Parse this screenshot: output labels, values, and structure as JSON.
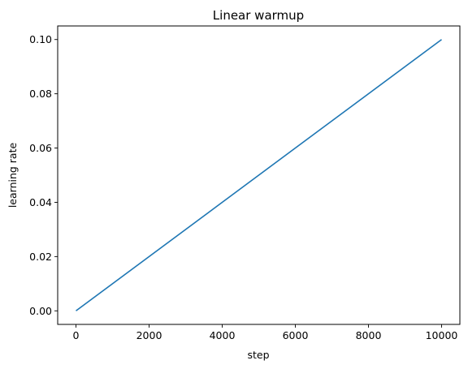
{
  "chart_data": {
    "type": "line",
    "title": "Linear warmup",
    "xlabel": "step",
    "ylabel": "learning rate",
    "xlim": [
      -500,
      10500
    ],
    "ylim": [
      -0.005,
      0.105
    ],
    "xticks": [
      0,
      2000,
      4000,
      6000,
      8000,
      10000
    ],
    "xtick_labels": [
      "0",
      "2000",
      "4000",
      "6000",
      "8000",
      "10000"
    ],
    "yticks": [
      0.0,
      0.02,
      0.04,
      0.06,
      0.08,
      0.1
    ],
    "ytick_labels": [
      "0.00",
      "0.02",
      "0.04",
      "0.06",
      "0.08",
      "0.10"
    ],
    "grid": false,
    "series": [
      {
        "color": "#1f77b4",
        "x": [
          0,
          10000
        ],
        "y": [
          0.0,
          0.1
        ]
      }
    ]
  }
}
